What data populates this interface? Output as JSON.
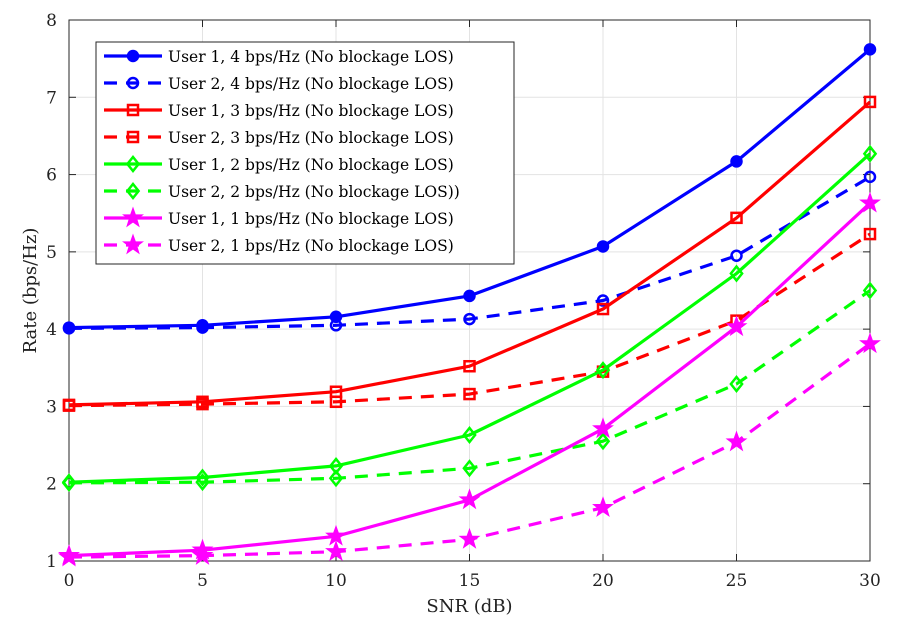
{
  "chart_data": {
    "type": "line",
    "xlabel": "SNR (dB)",
    "ylabel": "Rate (bps/Hz)",
    "xlim": [
      0,
      30
    ],
    "ylim": [
      1,
      8
    ],
    "xticks": [
      0,
      5,
      10,
      15,
      20,
      25,
      30
    ],
    "yticks": [
      1,
      2,
      3,
      4,
      5,
      6,
      7,
      8
    ],
    "grid": true,
    "legend_position": "top-left",
    "x": [
      0,
      5,
      10,
      15,
      20,
      25,
      30
    ],
    "series": [
      {
        "name": "User 1, 4 bps/Hz (No blockage LOS)",
        "color": "#0000ff",
        "dash": "solid",
        "marker": "circle-filled",
        "values": [
          4.02,
          4.05,
          4.16,
          4.43,
          5.07,
          6.17,
          7.62
        ]
      },
      {
        "name": "User 2, 4 bps/Hz (No blockage LOS)",
        "color": "#0000ff",
        "dash": "dashed",
        "marker": "circle",
        "values": [
          4.01,
          4.02,
          4.05,
          4.13,
          4.37,
          4.95,
          5.97
        ]
      },
      {
        "name": "User 1, 3 bps/Hz (No blockage LOS)",
        "color": "#ff0000",
        "dash": "solid",
        "marker": "square",
        "values": [
          3.02,
          3.06,
          3.19,
          3.52,
          4.26,
          5.44,
          6.94
        ]
      },
      {
        "name": "User 2, 3 bps/Hz (No blockage LOS)",
        "color": "#ff0000",
        "dash": "dashed",
        "marker": "square",
        "values": [
          3.01,
          3.03,
          3.06,
          3.16,
          3.45,
          4.11,
          5.23
        ]
      },
      {
        "name": "User 1, 2 bps/Hz (No blockage LOS)",
        "color": "#00ff00",
        "dash": "solid",
        "marker": "diamond",
        "values": [
          2.02,
          2.08,
          2.23,
          2.63,
          3.47,
          4.72,
          6.27
        ]
      },
      {
        "name": "User 2, 2 bps/Hz (No blockage LOS))",
        "color": "#00ff00",
        "dash": "dashed",
        "marker": "diamond",
        "values": [
          2.01,
          2.02,
          2.07,
          2.2,
          2.55,
          3.29,
          4.5
        ]
      },
      {
        "name": "User 1, 1 bps/Hz (No blockage LOS)",
        "color": "#ff00ff",
        "dash": "solid",
        "marker": "pentagram",
        "values": [
          1.07,
          1.14,
          1.32,
          1.79,
          2.71,
          4.03,
          5.63
        ]
      },
      {
        "name": "User 2, 1 bps/Hz (No blockage LOS)",
        "color": "#ff00ff",
        "dash": "dashed",
        "marker": "pentagram",
        "values": [
          1.05,
          1.07,
          1.12,
          1.28,
          1.69,
          2.54,
          3.81
        ]
      }
    ]
  }
}
